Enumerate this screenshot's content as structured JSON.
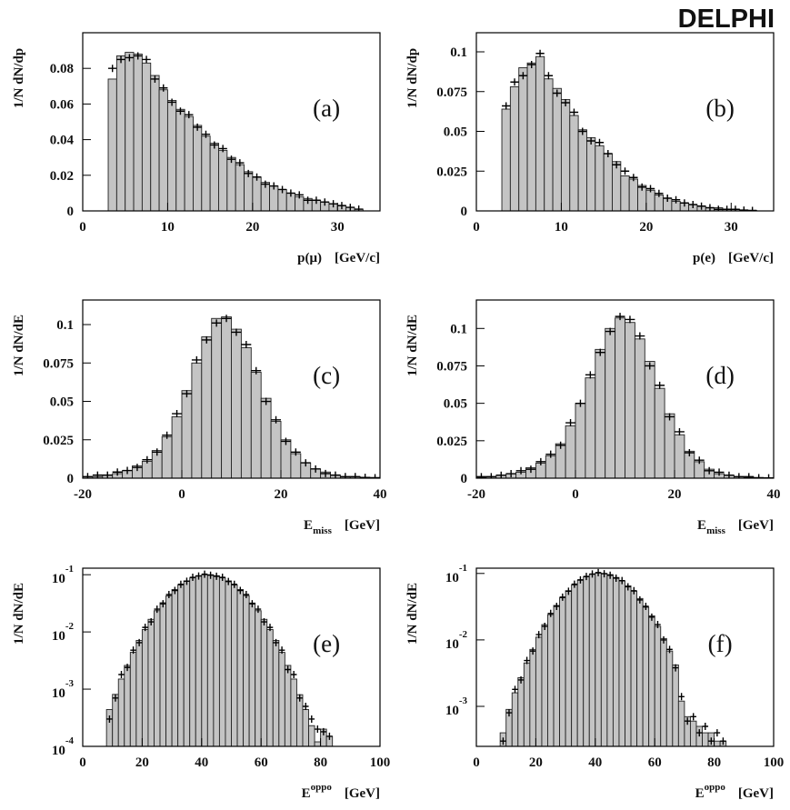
{
  "title": "DELPHI",
  "chart_data": [
    {
      "type": "histogram",
      "panel": "(a)",
      "ylabel": "1/N dN/dp",
      "xlabel": "p(μ)",
      "xunit": "[GeV/c]",
      "log": false,
      "color": "#c4c4c4",
      "bins": [
        3,
        4,
        5,
        6,
        7,
        8,
        9,
        10,
        11,
        12,
        13,
        14,
        15,
        16,
        17,
        18,
        19,
        20,
        21,
        22,
        23,
        24,
        25,
        26,
        27,
        28,
        29,
        30,
        31,
        32,
        33
      ],
      "values": [
        0.074,
        0.087,
        0.089,
        0.088,
        0.083,
        0.076,
        0.068,
        0.062,
        0.057,
        0.053,
        0.048,
        0.042,
        0.038,
        0.034,
        0.03,
        0.026,
        0.022,
        0.019,
        0.016,
        0.014,
        0.012,
        0.01,
        0.008,
        0.007,
        0.006,
        0.005,
        0.004,
        0.003,
        0.002,
        0.001
      ],
      "points": [
        0.08,
        0.085,
        0.086,
        0.087,
        0.085,
        0.074,
        0.069,
        0.061,
        0.056,
        0.054,
        0.047,
        0.043,
        0.037,
        0.035,
        0.029,
        0.027,
        0.021,
        0.019,
        0.015,
        0.014,
        0.012,
        0.01,
        0.009,
        0.006,
        0.006,
        0.005,
        0.004,
        0.003,
        0.002,
        0.001
      ],
      "xlim": [
        0,
        35
      ],
      "xticks": [
        0,
        10,
        20,
        30
      ],
      "ylim": [
        0,
        0.1
      ],
      "yticks": [
        0,
        0.02,
        0.04,
        0.06,
        0.08
      ]
    },
    {
      "type": "histogram",
      "panel": "(b)",
      "ylabel": "1/N dN/dp",
      "xlabel": "p(e)",
      "xunit": "[GeV/c]",
      "log": false,
      "color": "#c4c4c4",
      "bins": [
        3,
        4,
        5,
        6,
        7,
        8,
        9,
        10,
        11,
        12,
        13,
        14,
        15,
        16,
        17,
        18,
        19,
        20,
        21,
        22,
        23,
        24,
        25,
        26,
        27,
        28,
        29,
        30,
        31,
        32,
        33
      ],
      "values": [
        0.064,
        0.078,
        0.09,
        0.093,
        0.097,
        0.083,
        0.077,
        0.07,
        0.06,
        0.051,
        0.046,
        0.041,
        0.036,
        0.031,
        0.022,
        0.02,
        0.016,
        0.013,
        0.01,
        0.008,
        0.006,
        0.005,
        0.004,
        0.003,
        0.002,
        0.002,
        0.001,
        0.001,
        0.0005,
        0.0003
      ],
      "points": [
        0.066,
        0.081,
        0.085,
        0.092,
        0.099,
        0.085,
        0.074,
        0.068,
        0.062,
        0.05,
        0.044,
        0.043,
        0.036,
        0.029,
        0.025,
        0.021,
        0.015,
        0.014,
        0.011,
        0.008,
        0.007,
        0.005,
        0.004,
        0.003,
        0.002,
        0.001,
        0.001,
        0.001,
        0.0005,
        0.0003
      ],
      "xlim": [
        0,
        35
      ],
      "xticks": [
        0,
        10,
        20,
        30
      ],
      "ylim": [
        0,
        0.112
      ],
      "yticks": [
        0,
        0.025,
        0.05,
        0.075,
        0.1
      ]
    },
    {
      "type": "histogram",
      "panel": "(c)",
      "ylabel": "1/N dN/dE",
      "xlabel": "E",
      "xlabel_sub": "miss",
      "xunit": "[GeV]",
      "log": false,
      "color": "#c4c4c4",
      "bins": [
        -20,
        -18,
        -16,
        -14,
        -12,
        -10,
        -8,
        -6,
        -4,
        -2,
        0,
        2,
        4,
        6,
        8,
        10,
        12,
        14,
        16,
        18,
        20,
        22,
        24,
        26,
        28,
        30,
        32,
        34,
        36,
        38,
        40
      ],
      "values": [
        0.001,
        0.001,
        0.002,
        0.003,
        0.005,
        0.008,
        0.011,
        0.018,
        0.027,
        0.04,
        0.057,
        0.075,
        0.092,
        0.104,
        0.105,
        0.097,
        0.085,
        0.069,
        0.052,
        0.037,
        0.025,
        0.016,
        0.01,
        0.006,
        0.004,
        0.002,
        0.001,
        0.001,
        0.0005,
        0.0003
      ],
      "points": [
        0.001,
        0.002,
        0.002,
        0.004,
        0.005,
        0.007,
        0.012,
        0.017,
        0.028,
        0.042,
        0.055,
        0.077,
        0.09,
        0.101,
        0.104,
        0.095,
        0.087,
        0.07,
        0.05,
        0.038,
        0.024,
        0.017,
        0.01,
        0.006,
        0.003,
        0.002,
        0.001,
        0.001,
        0.0005,
        0.0003
      ],
      "xlim": [
        -20,
        40
      ],
      "xticks": [
        -20,
        0,
        20,
        40
      ],
      "ylim": [
        0,
        0.116
      ],
      "yticks": [
        0,
        0.025,
        0.05,
        0.075,
        0.1
      ]
    },
    {
      "type": "histogram",
      "panel": "(d)",
      "ylabel": "1/N dN/dE",
      "xlabel": "E",
      "xlabel_sub": "miss",
      "xunit": "[GeV]",
      "log": false,
      "color": "#c4c4c4",
      "bins": [
        -20,
        -18,
        -16,
        -14,
        -12,
        -10,
        -8,
        -6,
        -4,
        -2,
        0,
        2,
        4,
        6,
        8,
        10,
        12,
        14,
        16,
        18,
        20,
        22,
        24,
        26,
        28,
        30,
        32,
        34,
        36,
        38,
        40
      ],
      "values": [
        0.0005,
        0.001,
        0.002,
        0.003,
        0.004,
        0.007,
        0.01,
        0.015,
        0.023,
        0.035,
        0.05,
        0.067,
        0.086,
        0.1,
        0.107,
        0.104,
        0.093,
        0.078,
        0.06,
        0.043,
        0.029,
        0.018,
        0.011,
        0.006,
        0.003,
        0.002,
        0.001,
        0.0005,
        0.0003,
        0.0002
      ],
      "points": [
        0.001,
        0.001,
        0.002,
        0.003,
        0.005,
        0.006,
        0.011,
        0.016,
        0.022,
        0.037,
        0.05,
        0.069,
        0.084,
        0.098,
        0.108,
        0.106,
        0.095,
        0.075,
        0.062,
        0.041,
        0.031,
        0.017,
        0.012,
        0.005,
        0.004,
        0.002,
        0.001,
        0.001,
        0.0003,
        0.0002
      ],
      "xlim": [
        -20,
        40
      ],
      "xticks": [
        -20,
        0,
        20,
        40
      ],
      "ylim": [
        0,
        0.119
      ],
      "yticks": [
        0,
        0.025,
        0.05,
        0.075,
        0.1
      ]
    },
    {
      "type": "histogram",
      "panel": "(e)",
      "ylabel": "1/N dN/dE",
      "xlabel": "E",
      "xlabel_sup": "oppo",
      "xunit": "[GeV]",
      "log": true,
      "color": "#c4c4c4",
      "bins": [
        8,
        10,
        12,
        14,
        16,
        18,
        20,
        22,
        24,
        26,
        28,
        30,
        32,
        34,
        36,
        38,
        40,
        42,
        44,
        46,
        48,
        50,
        52,
        54,
        56,
        58,
        60,
        62,
        64,
        66,
        68,
        70,
        72,
        74,
        76,
        78,
        80,
        82,
        84
      ],
      "values": [
        0.00044,
        0.00081,
        0.0015,
        0.0026,
        0.0044,
        0.0071,
        0.011,
        0.0166,
        0.0235,
        0.0324,
        0.0427,
        0.055,
        0.066,
        0.078,
        0.088,
        0.096,
        0.1,
        0.1,
        0.096,
        0.088,
        0.078,
        0.066,
        0.055,
        0.043,
        0.032,
        0.0235,
        0.0166,
        0.011,
        0.0071,
        0.0044,
        0.0026,
        0.0015,
        0.0008,
        0.00044,
        0.00023,
        0.00012,
        0.0002,
        0.00015
      ],
      "points": [
        0.0003,
        0.0007,
        0.0018,
        0.0024,
        0.0048,
        0.0065,
        0.012,
        0.015,
        0.025,
        0.031,
        0.045,
        0.053,
        0.068,
        0.077,
        0.09,
        0.095,
        0.102,
        0.098,
        0.094,
        0.09,
        0.076,
        0.068,
        0.053,
        0.045,
        0.031,
        0.025,
        0.015,
        0.012,
        0.0065,
        0.0048,
        0.0022,
        0.0018,
        0.0007,
        0.0005,
        0.0003,
        0.0002,
        0.00018,
        0.00015
      ],
      "xlim": [
        0,
        100
      ],
      "xticks": [
        0,
        20,
        40,
        60,
        80,
        100
      ],
      "ylim": [
        0.0001,
        0.13
      ],
      "yticks": [
        {
          "value": 0.0001,
          "label": "10",
          "power": "-4"
        },
        {
          "value": 0.001,
          "label": "10",
          "power": "-3"
        },
        {
          "value": 0.01,
          "label": "10",
          "power": "-2"
        },
        {
          "value": 0.1,
          "label": "10",
          "power": "-1"
        }
      ]
    },
    {
      "type": "histogram",
      "panel": "(f)",
      "ylabel": "1/N dN/dE",
      "xlabel": "E",
      "xlabel_sup": "oppo",
      "xunit": "[GeV]",
      "log": true,
      "color": "#c4c4c4",
      "bins": [
        8,
        10,
        12,
        14,
        16,
        18,
        20,
        22,
        24,
        26,
        28,
        30,
        32,
        34,
        36,
        38,
        40,
        42,
        44,
        46,
        48,
        50,
        52,
        54,
        56,
        58,
        60,
        62,
        64,
        66,
        68,
        70,
        72,
        74,
        76,
        78,
        80,
        82,
        84
      ],
      "values": [
        0.0004,
        0.0009,
        0.0016,
        0.0027,
        0.0045,
        0.0072,
        0.011,
        0.017,
        0.024,
        0.033,
        0.043,
        0.055,
        0.067,
        0.079,
        0.089,
        0.097,
        0.101,
        0.1,
        0.096,
        0.087,
        0.077,
        0.065,
        0.054,
        0.042,
        0.031,
        0.023,
        0.016,
        0.0105,
        0.0068,
        0.0042,
        0.0012,
        0.0007,
        0.0006,
        0.0005,
        0.0004,
        0.0004,
        0.0003,
        0.0003
      ],
      "points": [
        0.0003,
        0.0008,
        0.0018,
        0.0025,
        0.0049,
        0.0068,
        0.012,
        0.016,
        0.025,
        0.032,
        0.044,
        0.054,
        0.069,
        0.08,
        0.09,
        0.098,
        0.103,
        0.099,
        0.094,
        0.085,
        0.078,
        0.063,
        0.055,
        0.04,
        0.032,
        0.022,
        0.017,
        0.01,
        0.0072,
        0.0038,
        0.0014,
        0.0006,
        0.0007,
        0.0004,
        0.0005,
        0.0003,
        0.0004,
        0.0003
      ],
      "xlim": [
        0,
        100
      ],
      "xticks": [
        0,
        20,
        40,
        60,
        80,
        100
      ],
      "ylim": [
        0.00025,
        0.12
      ],
      "yticks": [
        {
          "value": 0.001,
          "label": "10",
          "power": "-3"
        },
        {
          "value": 0.01,
          "label": "10",
          "power": "-2"
        },
        {
          "value": 0.1,
          "label": "10",
          "power": "-1"
        }
      ]
    }
  ]
}
